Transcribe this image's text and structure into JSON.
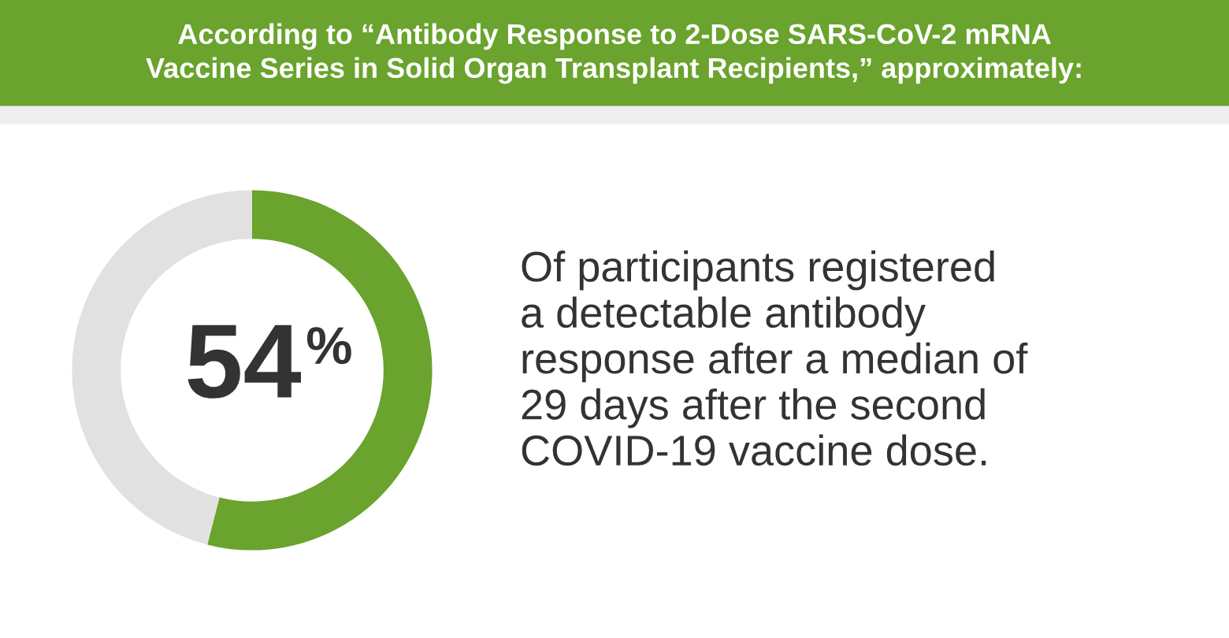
{
  "chart_data": {
    "type": "donut",
    "title": "According to “Antibody Response to 2-Dose SARS-CoV-2 mRNA\nVaccine Series in Solid Organ Transplant Recipients,” approximately:",
    "categories": [
      null,
      null
    ],
    "values": [
      54,
      46
    ],
    "colors": [
      "#6aa32d",
      "#e1e1e1"
    ],
    "value_labels": [
      "54%",
      null
    ],
    "annotations": [
      "Of participants registered\na detectable antibody\nresponse after a median of\n29 days after the second\nCOVID-19 vaccine dose."
    ]
  }
}
